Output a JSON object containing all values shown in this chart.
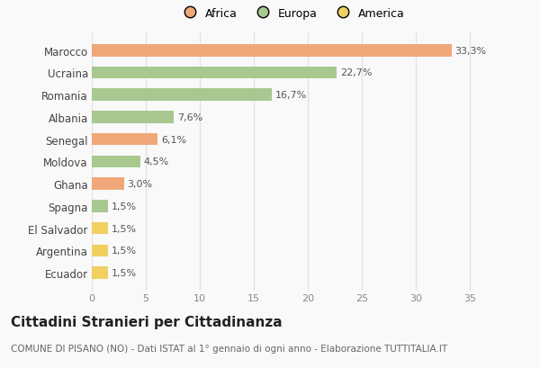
{
  "countries": [
    "Marocco",
    "Ucraina",
    "Romania",
    "Albania",
    "Senegal",
    "Moldova",
    "Ghana",
    "Spagna",
    "El Salvador",
    "Argentina",
    "Ecuador"
  ],
  "values": [
    33.3,
    22.7,
    16.7,
    7.6,
    6.1,
    4.5,
    3.0,
    1.5,
    1.5,
    1.5,
    1.5
  ],
  "labels": [
    "33,3%",
    "22,7%",
    "16,7%",
    "7,6%",
    "6,1%",
    "4,5%",
    "3,0%",
    "1,5%",
    "1,5%",
    "1,5%",
    "1,5%"
  ],
  "colors": [
    "#f0a878",
    "#a8c890",
    "#a8c890",
    "#a8c890",
    "#f0a878",
    "#a8c890",
    "#f0a878",
    "#a8c890",
    "#f0d060",
    "#f0d060",
    "#f0d060"
  ],
  "legend_labels": [
    "Africa",
    "Europa",
    "America"
  ],
  "legend_colors": [
    "#f0a878",
    "#a8c890",
    "#f0d060"
  ],
  "title": "Cittadini Stranieri per Cittadinanza",
  "subtitle": "COMUNE DI PISANO (NO) - Dati ISTAT al 1° gennaio di ogni anno - Elaborazione TUTTITALIA.IT",
  "xlim": [
    0,
    37
  ],
  "xticks": [
    0,
    5,
    10,
    15,
    20,
    25,
    30,
    35
  ],
  "background_color": "#f9f9f9",
  "grid_color": "#e0e0e0",
  "bar_height": 0.55,
  "label_fontsize": 8,
  "ytick_fontsize": 8.5,
  "xtick_fontsize": 8,
  "legend_fontsize": 9,
  "title_fontsize": 11,
  "subtitle_fontsize": 7.5
}
